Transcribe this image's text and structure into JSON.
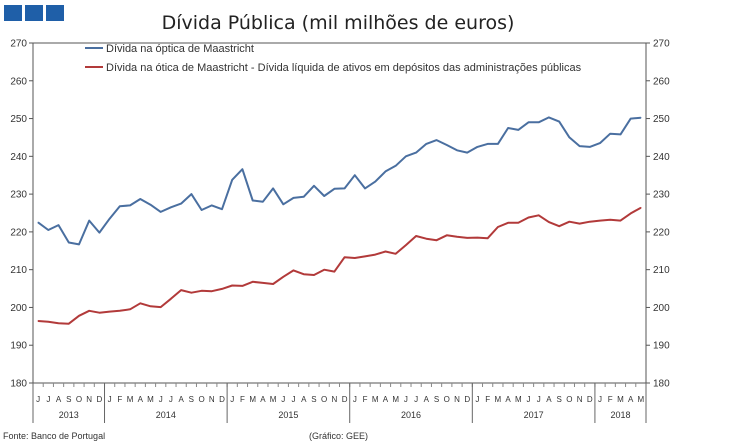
{
  "logo": {
    "color": "#1f5fa8",
    "blocks": 3
  },
  "chart_data": {
    "type": "line",
    "title": "Dívida Pública (mil milhões de euros)",
    "ylim": [
      180,
      270
    ],
    "yticks": [
      180,
      190,
      200,
      210,
      220,
      230,
      240,
      250,
      260,
      270
    ],
    "grid": false,
    "legend_position": "top",
    "months": [
      "J",
      "J",
      "A",
      "S",
      "O",
      "N",
      "D",
      "J",
      "F",
      "M",
      "A",
      "M",
      "J",
      "J",
      "A",
      "S",
      "O",
      "N",
      "D",
      "J",
      "F",
      "M",
      "A",
      "M",
      "J",
      "J",
      "A",
      "S",
      "O",
      "N",
      "D",
      "J",
      "F",
      "M",
      "A",
      "M",
      "J",
      "J",
      "A",
      "S",
      "O",
      "N",
      "D",
      "J",
      "F",
      "M",
      "A",
      "M",
      "J",
      "J",
      "A",
      "S",
      "O",
      "N",
      "D",
      "J",
      "F",
      "M",
      "A",
      "M"
    ],
    "years": [
      {
        "label": "2013",
        "start": 0,
        "end": 6
      },
      {
        "label": "2014",
        "start": 7,
        "end": 18
      },
      {
        "label": "2015",
        "start": 19,
        "end": 30
      },
      {
        "label": "2016",
        "start": 31,
        "end": 42
      },
      {
        "label": "2017",
        "start": 43,
        "end": 54
      },
      {
        "label": "2018",
        "start": 55,
        "end": 59
      }
    ],
    "series": [
      {
        "name": "Dívida na óptica de Maastricht",
        "color": "#4a6fa0",
        "values": [
          222.5,
          220.5,
          221.8,
          217.2,
          216.7,
          223.0,
          219.8,
          223.5,
          226.8,
          227.0,
          228.7,
          227.2,
          225.3,
          226.5,
          227.5,
          230.0,
          225.8,
          227.0,
          226.0,
          233.8,
          236.6,
          228.3,
          228.0,
          231.5,
          227.3,
          229.0,
          229.3,
          232.2,
          229.5,
          231.4,
          231.5,
          235.0,
          231.5,
          233.3,
          236.0,
          237.5,
          240.0,
          241.0,
          243.3,
          244.3,
          243.0,
          241.6,
          241.0,
          242.5,
          243.3,
          243.3,
          247.5,
          247.0,
          249.0,
          249.0,
          250.3,
          249.2,
          245.0,
          242.7,
          242.5,
          243.5,
          246.0,
          245.8,
          250.0,
          250.2
        ]
      },
      {
        "name": "Dívida na ótica de Maastricht - Dívida líquida de ativos em depósitos das administrações públicas",
        "color": "#b23a3a",
        "values": [
          196.4,
          196.2,
          195.8,
          195.7,
          197.8,
          199.1,
          198.6,
          198.9,
          199.1,
          199.5,
          201.1,
          200.3,
          200.1,
          202.3,
          204.6,
          203.9,
          204.4,
          204.3,
          204.9,
          205.8,
          205.7,
          206.8,
          206.5,
          206.2,
          208.1,
          209.8,
          208.8,
          208.6,
          210.0,
          209.5,
          213.3,
          213.1,
          213.5,
          214.0,
          214.8,
          214.2,
          216.5,
          218.9,
          218.2,
          217.8,
          219.1,
          218.7,
          218.4,
          218.5,
          218.3,
          221.3,
          222.4,
          222.4,
          223.8,
          224.4,
          222.6,
          221.5,
          222.7,
          222.2,
          222.7,
          223.0,
          223.2,
          223.0,
          224.9,
          226.4
        ]
      }
    ]
  },
  "footer": {
    "source": "Fonte: Banco de Portugal",
    "credit": "(Gráfico: GEE)"
  }
}
